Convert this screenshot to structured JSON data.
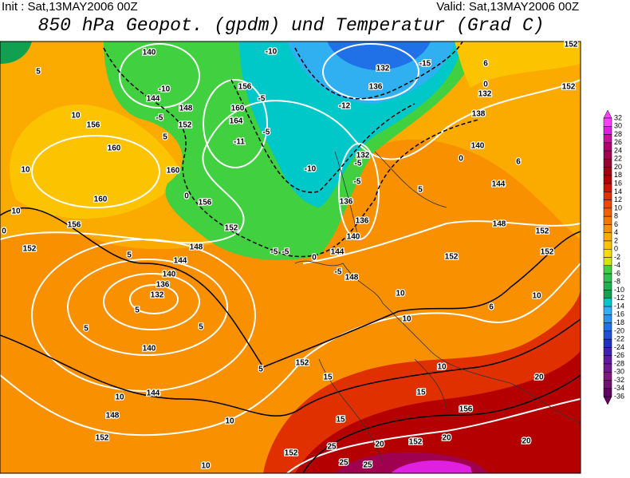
{
  "header": {
    "init": "Init : Sat,13MAY2006 00Z",
    "valid": "Valid: Sat,13MAY2006 00Z",
    "title": "850 hPa Geopot. (gpdm) und Temperatur (Grad C)"
  },
  "colorbar": {
    "levels": [
      32,
      30,
      28,
      26,
      24,
      22,
      20,
      18,
      16,
      14,
      12,
      10,
      8,
      6,
      4,
      2,
      0,
      -2,
      -4,
      -6,
      -8,
      -10,
      -12,
      -14,
      -16,
      -18,
      -20,
      -22,
      -24,
      -26,
      -28,
      -30,
      -32,
      -34,
      -36
    ],
    "colors": [
      "#ff40ff",
      "#e020e0",
      "#c8109c",
      "#b00070",
      "#a00050",
      "#960030",
      "#a00010",
      "#b40000",
      "#d01400",
      "#e03000",
      "#ec4800",
      "#f06000",
      "#f47800",
      "#f89000",
      "#fbaa00",
      "#fcc400",
      "#f8dc00",
      "#d4e600",
      "#40d040",
      "#30c050",
      "#20b050",
      "#10a050",
      "#00c8c8",
      "#30b0f0",
      "#3090f0",
      "#2070e8",
      "#2050d8",
      "#2030c0",
      "#4020b0",
      "#6018a0",
      "#701890",
      "#801880",
      "#701070",
      "#600060"
    ]
  },
  "contour_labels": [
    140,
    144,
    148,
    152,
    156,
    160,
    164,
    160,
    156,
    152,
    156,
    160,
    160,
    156,
    152,
    148,
    144,
    140,
    136,
    132,
    140,
    144,
    148,
    152,
    132,
    136,
    132,
    138,
    140,
    144,
    148,
    152,
    152,
    152,
    152,
    152,
    156,
    152,
    152,
    152,
    132,
    136,
    136,
    140,
    144,
    148,
    -10,
    -15,
    -12,
    -10,
    -5,
    -5,
    -5,
    -5,
    0,
    -5,
    -10,
    -5,
    -5,
    -11,
    -5,
    5,
    0,
    10,
    5,
    5,
    5,
    5,
    5,
    10,
    10,
    10,
    10,
    10,
    10,
    15,
    15,
    15,
    20,
    20,
    20,
    20,
    25,
    25,
    25,
    6,
    10,
    6,
    5,
    0,
    6,
    0,
    10,
    5,
    0,
    10
  ]
}
